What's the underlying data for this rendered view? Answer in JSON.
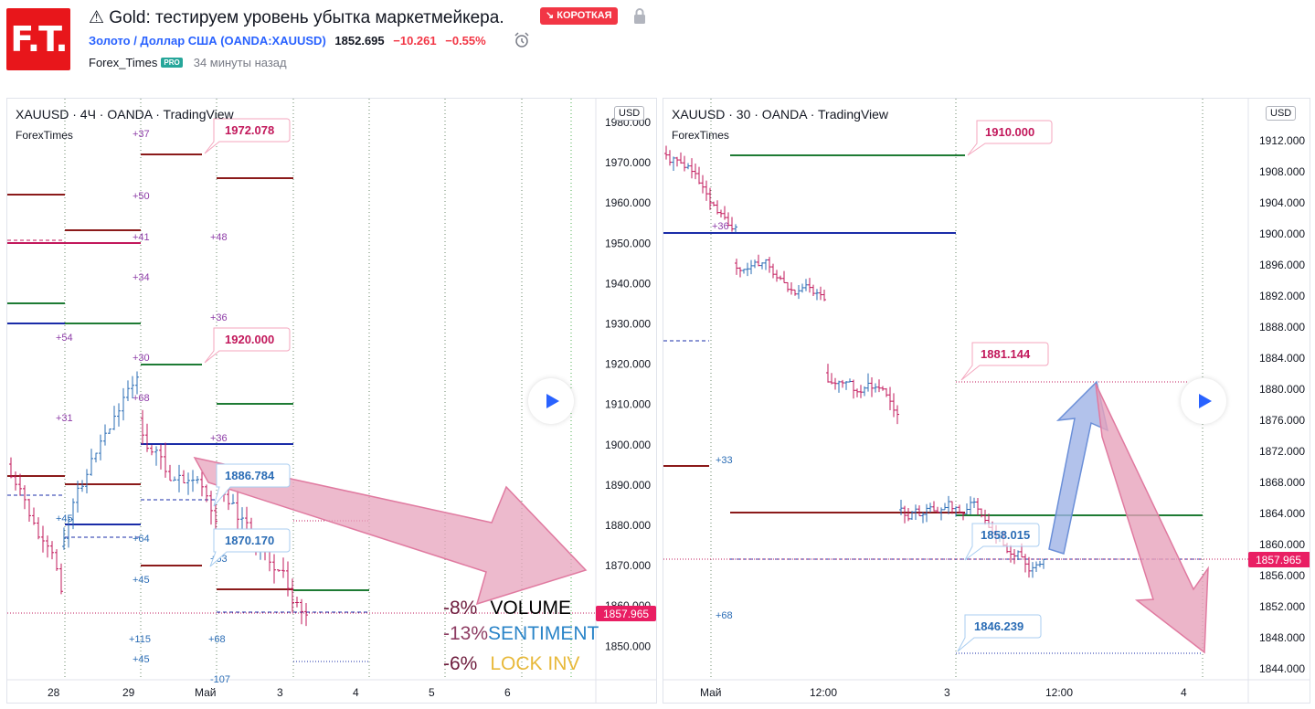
{
  "header": {
    "logo_text": "F.T.",
    "title": "⚠ Gold: тестируем уровень убытка маркетмейкера.",
    "badge": "↘ КОРОТКАЯ",
    "symbol": "Золото / Доллар США (OANDA:XAUUSD)",
    "price": "1852.695",
    "change": "−10.261",
    "change_pct": "−0.55%",
    "author": "Forex_Times",
    "pro_badge": "PRO",
    "time": "34 минуты назад",
    "icons": {
      "lock": "lock-icon",
      "alarm": "alarm-clock-icon"
    }
  },
  "chart_left": {
    "title": "XAUUSD · 4Ч · OANDA · TradingView",
    "author": "ForexTimes",
    "currency": "USD",
    "price_ticks": [
      "1980.000",
      "1970.000",
      "1960.000",
      "1950.000",
      "1940.000",
      "1930.000",
      "1920.000",
      "1910.000",
      "1900.000",
      "1890.000",
      "1880.000",
      "1870.000",
      "1860.000",
      "1850.000"
    ],
    "last_price": "1857.965",
    "time_ticks": [
      "28",
      "29",
      "Май",
      "3",
      "4",
      "5",
      "6"
    ],
    "callouts": [
      "1972.078",
      "1920.000",
      "1886.784",
      "1870.170"
    ],
    "volume_labels": [
      "+37",
      "+50",
      "+41",
      "+48",
      "+34",
      "+36",
      "+54",
      "+30",
      "+68",
      "+31",
      "+36",
      "+45",
      "+64",
      "+63",
      "+45",
      "+115",
      "+68",
      "+45",
      "-107"
    ],
    "annotations": [
      {
        "pct": "-8%",
        "label": "VOLUME"
      },
      {
        "pct": "-13%",
        "label": "SENTIMENT"
      },
      {
        "pct": "-6%",
        "label": "LOCK INV"
      }
    ]
  },
  "chart_right": {
    "title": "XAUUSD · 30 · OANDA · TradingView",
    "author": "ForexTimes",
    "currency": "USD",
    "price_ticks": [
      "1912.000",
      "1908.000",
      "1904.000",
      "1900.000",
      "1896.000",
      "1892.000",
      "1888.000",
      "1884.000",
      "1880.000",
      "1876.000",
      "1872.000",
      "1868.000",
      "1864.000",
      "1860.000",
      "1856.000",
      "1852.000",
      "1848.000",
      "1844.000"
    ],
    "last_price": "1857.965",
    "time_ticks": [
      "Май",
      "12:00",
      "3",
      "12:00",
      "4"
    ],
    "callouts": [
      "1910.000",
      "1881.144",
      "1858.015",
      "1846.239"
    ],
    "volume_labels": [
      "+36",
      "+33",
      "+68"
    ]
  },
  "colors": {
    "bull": "#2a6cb5",
    "bear": "#c2185b",
    "level_red": "#8b1a1a",
    "level_green": "#1e7b34",
    "level_blue": "#1a2ca8",
    "arrow_pink": "#e7a3bc",
    "arrow_blue": "#9fb3e6",
    "price_tag": "#e91e63"
  }
}
